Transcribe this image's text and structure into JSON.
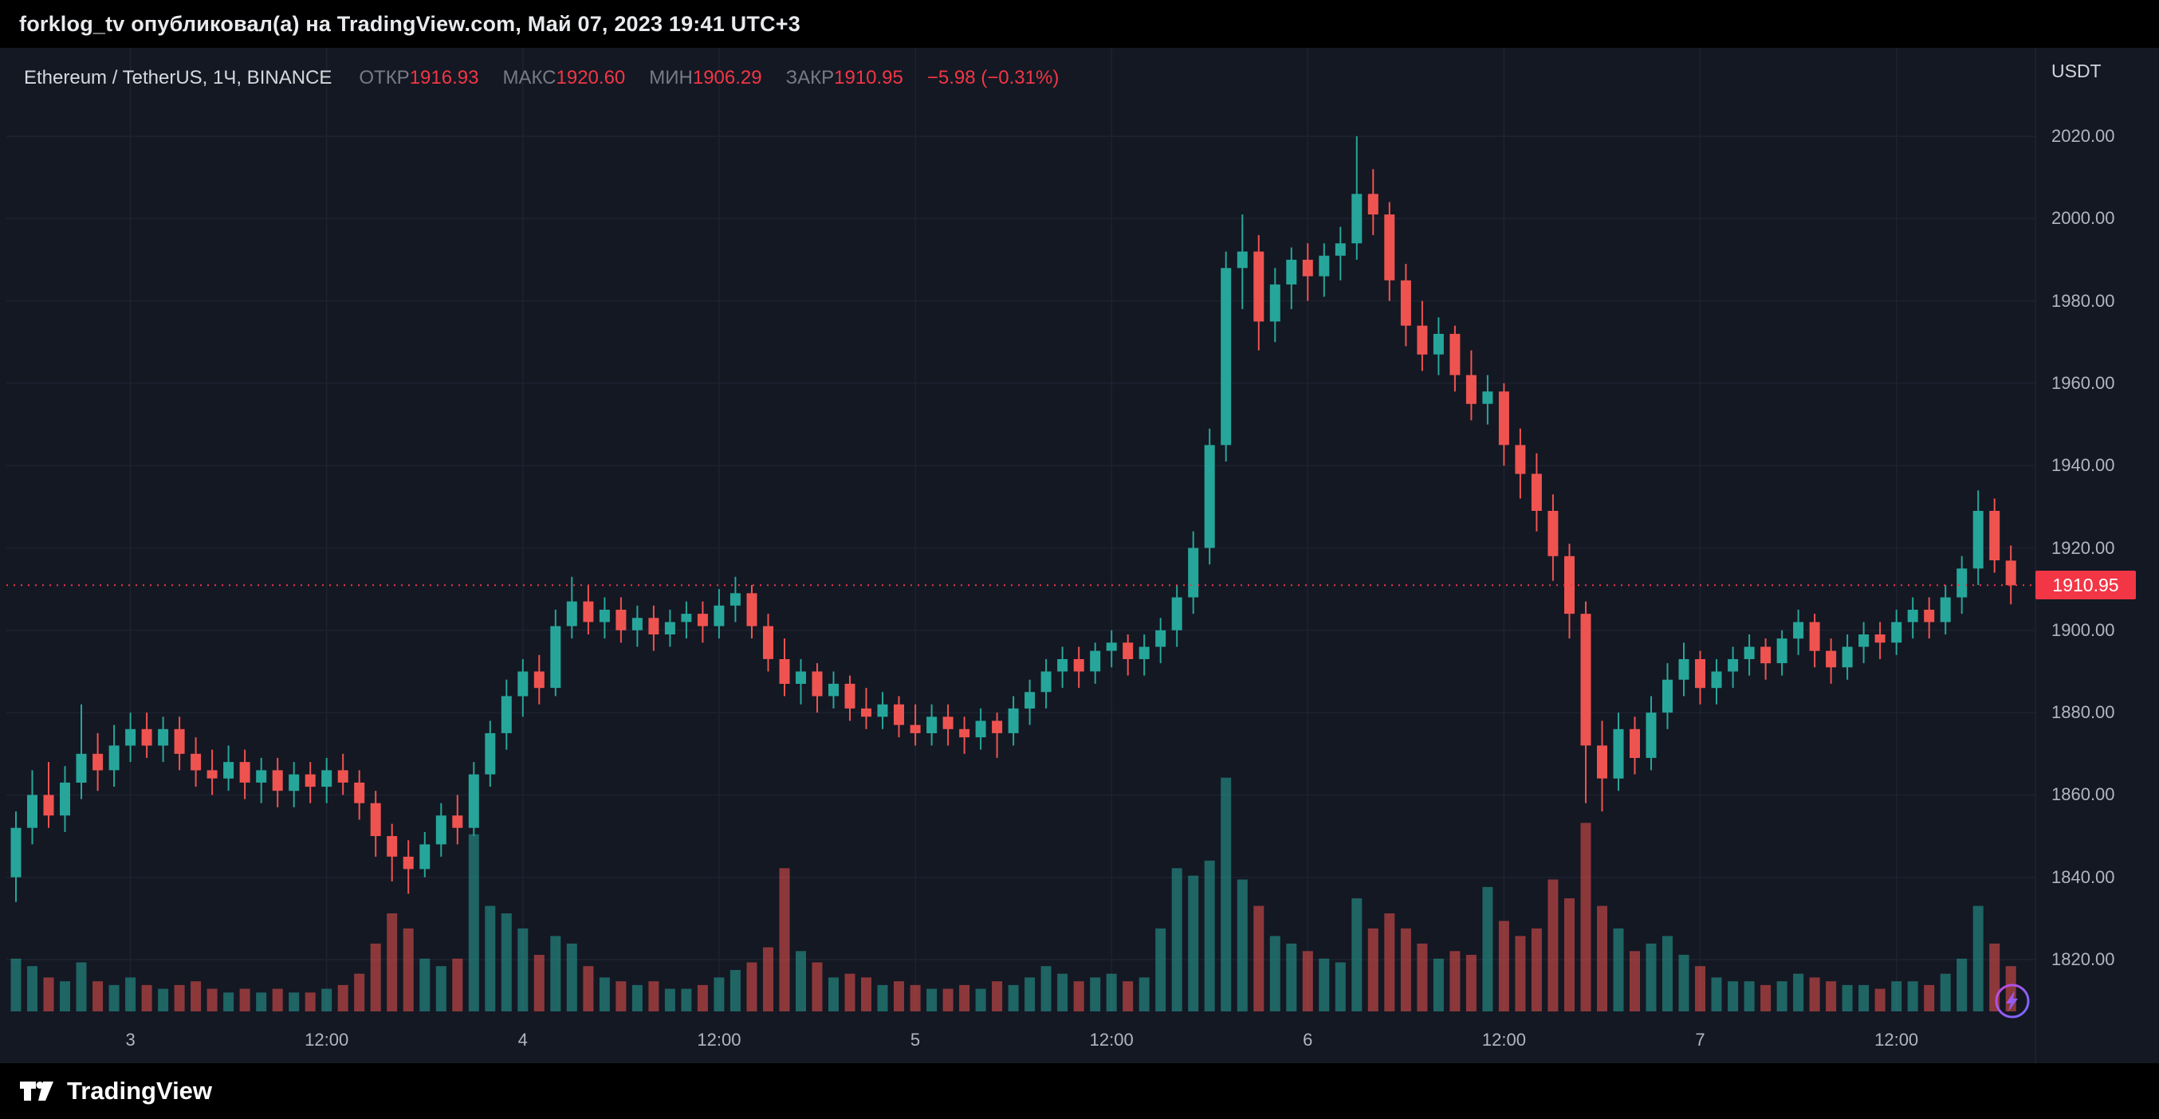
{
  "header": {
    "text": "forklog_tv опубликовал(а) на TradingView.com, Май 07, 2023 19:41 UTC+3"
  },
  "footer": {
    "brand": "TradingView"
  },
  "legend": {
    "symbol": "Ethereum / TetherUS, 1Ч, BINANCE",
    "open_label": "ОТКР",
    "open": "1916.93",
    "high_label": "МАКС",
    "high": "1920.60",
    "low_label": "МИН",
    "low": "1906.29",
    "close_label": "ЗАКР",
    "close": "1910.95",
    "change": "−5.98 (−0.31%)"
  },
  "price_scale": {
    "currency": "USDT",
    "labels": [
      "2020.00",
      "2000.00",
      "1980.00",
      "1960.00",
      "1940.00",
      "1920.00",
      "1900.00",
      "1880.00",
      "1860.00",
      "1840.00",
      "1820.00"
    ],
    "last_price": "1910.95",
    "last_price_value": 1910.95
  },
  "time_scale": {
    "ticks": [
      {
        "label": "3",
        "index": 7
      },
      {
        "label": "12:00",
        "index": 19
      },
      {
        "label": "4",
        "index": 31
      },
      {
        "label": "12:00",
        "index": 43
      },
      {
        "label": "5",
        "index": 55
      },
      {
        "label": "12:00",
        "index": 67
      },
      {
        "label": "6",
        "index": 79
      },
      {
        "label": "12:00",
        "index": 91
      },
      {
        "label": "7",
        "index": 103
      },
      {
        "label": "12:00",
        "index": 115
      }
    ]
  },
  "colors": {
    "up": "#26a69a",
    "down": "#ef5350",
    "accent_red": "#f23645",
    "grid": "#1e2230",
    "axis_text": "#b2b5be",
    "background": "#141823",
    "flash_purple": "#c24ae0",
    "flash_blue": "#6f6cff"
  },
  "chart_data": {
    "type": "candlestick",
    "title": "Ethereum / TetherUS, 1Ч, BINANCE",
    "interval": "1Ч",
    "ylabel": "USDT",
    "ylim": [
      1820,
      2020
    ],
    "grid": true,
    "last_close": 1910.95,
    "columns": [
      "open",
      "high",
      "low",
      "close",
      "volume"
    ],
    "candles": [
      [
        1840,
        1856,
        1834,
        1852,
        14
      ],
      [
        1852,
        1866,
        1848,
        1860,
        12
      ],
      [
        1860,
        1868,
        1852,
        1855,
        9
      ],
      [
        1855,
        1867,
        1851,
        1863,
        8
      ],
      [
        1863,
        1882,
        1859,
        1870,
        13
      ],
      [
        1870,
        1875,
        1861,
        1866,
        8
      ],
      [
        1866,
        1877,
        1862,
        1872,
        7
      ],
      [
        1872,
        1880,
        1868,
        1876,
        9
      ],
      [
        1876,
        1880,
        1869,
        1872,
        7
      ],
      [
        1872,
        1879,
        1868,
        1876,
        6
      ],
      [
        1876,
        1879,
        1866,
        1870,
        7
      ],
      [
        1870,
        1874,
        1862,
        1866,
        8
      ],
      [
        1866,
        1871,
        1860,
        1864,
        6
      ],
      [
        1864,
        1872,
        1861,
        1868,
        5
      ],
      [
        1868,
        1871,
        1859,
        1863,
        6
      ],
      [
        1863,
        1869,
        1858,
        1866,
        5
      ],
      [
        1866,
        1869,
        1857,
        1861,
        6
      ],
      [
        1861,
        1868,
        1857,
        1865,
        5
      ],
      [
        1865,
        1868,
        1858,
        1862,
        5
      ],
      [
        1862,
        1869,
        1858,
        1866,
        6
      ],
      [
        1866,
        1870,
        1860,
        1863,
        7
      ],
      [
        1863,
        1866,
        1854,
        1858,
        10
      ],
      [
        1858,
        1861,
        1845,
        1850,
        18
      ],
      [
        1850,
        1853,
        1839,
        1845,
        26
      ],
      [
        1845,
        1849,
        1836,
        1842,
        22
      ],
      [
        1842,
        1851,
        1840,
        1848,
        14
      ],
      [
        1848,
        1858,
        1845,
        1855,
        12
      ],
      [
        1855,
        1860,
        1848,
        1852,
        14
      ],
      [
        1852,
        1868,
        1850,
        1865,
        47
      ],
      [
        1865,
        1878,
        1862,
        1875,
        28
      ],
      [
        1875,
        1888,
        1871,
        1884,
        26
      ],
      [
        1884,
        1893,
        1879,
        1890,
        22
      ],
      [
        1890,
        1894,
        1882,
        1886,
        15
      ],
      [
        1886,
        1905,
        1884,
        1901,
        20
      ],
      [
        1901,
        1913,
        1898,
        1907,
        18
      ],
      [
        1907,
        1911,
        1899,
        1902,
        12
      ],
      [
        1902,
        1908,
        1898,
        1905,
        9
      ],
      [
        1905,
        1908,
        1897,
        1900,
        8
      ],
      [
        1900,
        1906,
        1896,
        1903,
        7
      ],
      [
        1903,
        1906,
        1895,
        1899,
        8
      ],
      [
        1899,
        1905,
        1896,
        1902,
        6
      ],
      [
        1902,
        1907,
        1898,
        1904,
        6
      ],
      [
        1904,
        1907,
        1897,
        1901,
        7
      ],
      [
        1901,
        1910,
        1898,
        1906,
        9
      ],
      [
        1906,
        1913,
        1902,
        1909,
        11
      ],
      [
        1909,
        1911,
        1898,
        1901,
        13
      ],
      [
        1901,
        1904,
        1890,
        1893,
        17
      ],
      [
        1893,
        1898,
        1884,
        1887,
        38
      ],
      [
        1887,
        1893,
        1882,
        1890,
        16
      ],
      [
        1890,
        1892,
        1880,
        1884,
        13
      ],
      [
        1884,
        1890,
        1881,
        1887,
        9
      ],
      [
        1887,
        1889,
        1878,
        1881,
        10
      ],
      [
        1881,
        1886,
        1876,
        1879,
        9
      ],
      [
        1879,
        1885,
        1876,
        1882,
        7
      ],
      [
        1882,
        1884,
        1874,
        1877,
        8
      ],
      [
        1877,
        1882,
        1872,
        1875,
        7
      ],
      [
        1875,
        1882,
        1872,
        1879,
        6
      ],
      [
        1879,
        1882,
        1872,
        1876,
        6
      ],
      [
        1876,
        1879,
        1870,
        1874,
        7
      ],
      [
        1874,
        1881,
        1871,
        1878,
        6
      ],
      [
        1878,
        1880,
        1869,
        1875,
        8
      ],
      [
        1875,
        1884,
        1872,
        1881,
        7
      ],
      [
        1881,
        1888,
        1877,
        1885,
        9
      ],
      [
        1885,
        1893,
        1881,
        1890,
        12
      ],
      [
        1890,
        1896,
        1886,
        1893,
        10
      ],
      [
        1893,
        1896,
        1886,
        1890,
        8
      ],
      [
        1890,
        1897,
        1887,
        1895,
        9
      ],
      [
        1895,
        1900,
        1891,
        1897,
        10
      ],
      [
        1897,
        1899,
        1889,
        1893,
        8
      ],
      [
        1893,
        1899,
        1889,
        1896,
        9
      ],
      [
        1896,
        1903,
        1892,
        1900,
        22
      ],
      [
        1900,
        1911,
        1896,
        1908,
        38
      ],
      [
        1908,
        1924,
        1904,
        1920,
        36
      ],
      [
        1920,
        1949,
        1916,
        1945,
        40
      ],
      [
        1945,
        1992,
        1941,
        1988,
        62
      ],
      [
        1988,
        2001,
        1978,
        1992,
        35
      ],
      [
        1992,
        1996,
        1968,
        1975,
        28
      ],
      [
        1975,
        1988,
        1970,
        1984,
        20
      ],
      [
        1984,
        1993,
        1978,
        1990,
        18
      ],
      [
        1990,
        1994,
        1980,
        1986,
        16
      ],
      [
        1986,
        1994,
        1981,
        1991,
        14
      ],
      [
        1991,
        1998,
        1985,
        1994,
        13
      ],
      [
        1994,
        2020,
        1990,
        2006,
        30
      ],
      [
        2006,
        2012,
        1996,
        2001,
        22
      ],
      [
        2001,
        2004,
        1980,
        1985,
        26
      ],
      [
        1985,
        1989,
        1969,
        1974,
        22
      ],
      [
        1974,
        1980,
        1963,
        1967,
        18
      ],
      [
        1967,
        1976,
        1962,
        1972,
        14
      ],
      [
        1972,
        1974,
        1958,
        1962,
        16
      ],
      [
        1962,
        1968,
        1951,
        1955,
        15
      ],
      [
        1955,
        1962,
        1950,
        1958,
        33
      ],
      [
        1958,
        1960,
        1940,
        1945,
        24
      ],
      [
        1945,
        1949,
        1932,
        1938,
        20
      ],
      [
        1938,
        1943,
        1924,
        1929,
        22
      ],
      [
        1929,
        1933,
        1912,
        1918,
        35
      ],
      [
        1918,
        1921,
        1898,
        1904,
        30
      ],
      [
        1904,
        1907,
        1858,
        1872,
        50
      ],
      [
        1872,
        1878,
        1856,
        1864,
        28
      ],
      [
        1864,
        1880,
        1861,
        1876,
        22
      ],
      [
        1876,
        1879,
        1865,
        1869,
        16
      ],
      [
        1869,
        1884,
        1866,
        1880,
        18
      ],
      [
        1880,
        1892,
        1876,
        1888,
        20
      ],
      [
        1888,
        1897,
        1884,
        1893,
        15
      ],
      [
        1893,
        1895,
        1882,
        1886,
        12
      ],
      [
        1886,
        1893,
        1882,
        1890,
        9
      ],
      [
        1890,
        1896,
        1886,
        1893,
        8
      ],
      [
        1893,
        1899,
        1889,
        1896,
        8
      ],
      [
        1896,
        1898,
        1888,
        1892,
        7
      ],
      [
        1892,
        1900,
        1889,
        1898,
        8
      ],
      [
        1898,
        1905,
        1894,
        1902,
        10
      ],
      [
        1902,
        1904,
        1891,
        1895,
        9
      ],
      [
        1895,
        1898,
        1887,
        1891,
        8
      ],
      [
        1891,
        1899,
        1888,
        1896,
        7
      ],
      [
        1896,
        1902,
        1892,
        1899,
        7
      ],
      [
        1899,
        1902,
        1893,
        1897,
        6
      ],
      [
        1897,
        1905,
        1894,
        1902,
        8
      ],
      [
        1902,
        1908,
        1898,
        1905,
        8
      ],
      [
        1905,
        1908,
        1898,
        1902,
        7
      ],
      [
        1902,
        1911,
        1899,
        1908,
        10
      ],
      [
        1908,
        1918,
        1904,
        1915,
        14
      ],
      [
        1915,
        1934,
        1911,
        1929,
        28
      ],
      [
        1929,
        1932,
        1914,
        1917,
        18
      ],
      [
        1916.93,
        1920.6,
        1906.29,
        1910.95,
        12
      ]
    ]
  }
}
